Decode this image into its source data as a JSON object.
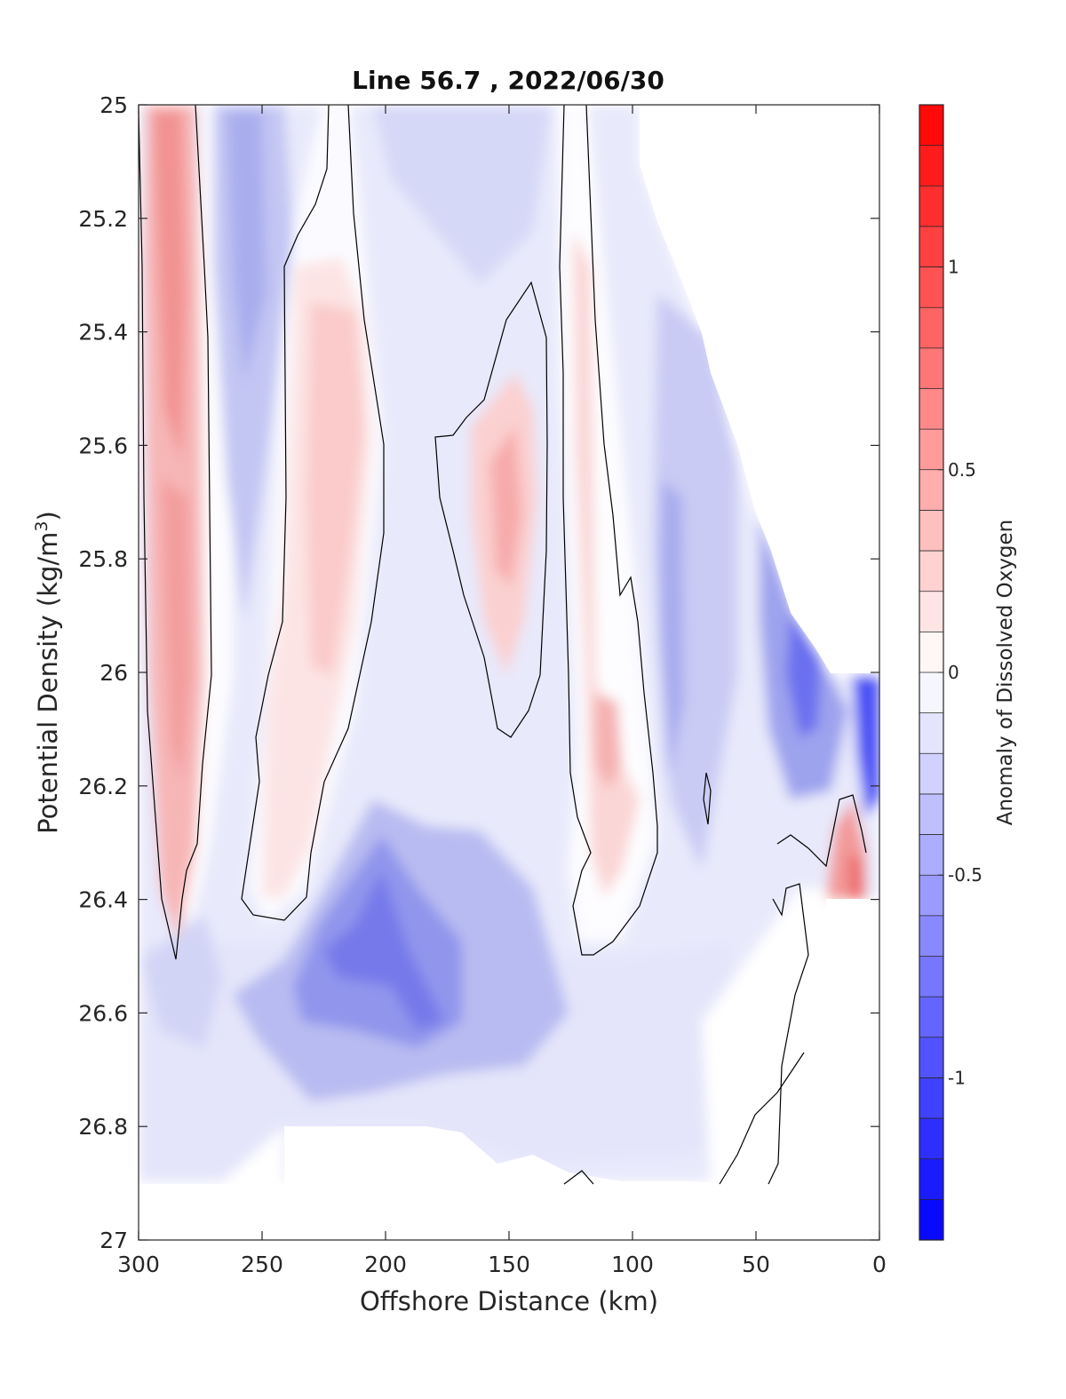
{
  "chart_data": {
    "type": "heatmap",
    "title": "Line 56.7 , 2022/06/30",
    "xlabel": "Offshore Distance (km)",
    "ylabel": "Potential Density (kg/m³)",
    "ylabel_main": "Potential Density (kg/m",
    "ylabel_sup": "3",
    "ylabel_close": ")",
    "xlim": [
      300,
      0
    ],
    "ylim": [
      25,
      27
    ],
    "y_reversed": true,
    "x_ticks": [
      300,
      250,
      200,
      150,
      100,
      50,
      0
    ],
    "x_tick_labels": [
      "300",
      "250",
      "200",
      "150",
      "100",
      "50",
      "0"
    ],
    "y_ticks": [
      25,
      25.2,
      25.4,
      25.6,
      25.8,
      26,
      26.2,
      26.4,
      26.6,
      26.8,
      27
    ],
    "y_tick_labels": [
      "25",
      "25.2",
      "25.4",
      "25.6",
      "25.8",
      "26",
      "26.2",
      "26.4",
      "26.6",
      "26.8",
      "27"
    ],
    "colorbar": {
      "label": "Anomaly of Dissolved Oxygen",
      "range": [
        -1.4,
        1.4
      ],
      "ticks": [
        1,
        0.5,
        0,
        -0.5,
        -1
      ],
      "tick_labels": [
        "1",
        "0.5",
        "0",
        "-0.5",
        "-1"
      ],
      "colormap": "blue-white-red",
      "color_low": "#0000ff",
      "color_high": "#ff0000",
      "color_mid": "#ffffff"
    },
    "grid": false,
    "zero_contour_color": "#000000",
    "field_features": [
      {
        "x": 287,
        "y": 25.8,
        "value": 0.45
      },
      {
        "x": 285,
        "y": 25.3,
        "value": 0.55
      },
      {
        "x": 262,
        "y": 25.4,
        "value": -0.35
      },
      {
        "x": 222,
        "y": 25.7,
        "value": 0.25
      },
      {
        "x": 190,
        "y": 25.3,
        "value": -0.2
      },
      {
        "x": 150,
        "y": 25.7,
        "value": 0.35
      },
      {
        "x": 108,
        "y": 26.1,
        "value": 0.3
      },
      {
        "x": 83,
        "y": 25.9,
        "value": -0.4
      },
      {
        "x": 30,
        "y": 26.0,
        "value": -0.8
      },
      {
        "x": 3,
        "y": 26.1,
        "value": -1.1
      },
      {
        "x": 10,
        "y": 26.35,
        "value": 0.55
      },
      {
        "x": 215,
        "y": 26.5,
        "value": -0.7
      },
      {
        "x": 193,
        "y": 26.55,
        "value": -0.75
      },
      {
        "x": 240,
        "y": 26.6,
        "value": -0.45
      },
      {
        "x": 160,
        "y": 26.6,
        "value": -0.35
      },
      {
        "x": 75,
        "y": 26.5,
        "value": -0.3
      },
      {
        "x": 280,
        "y": 26.75,
        "value": -0.2
      }
    ]
  }
}
